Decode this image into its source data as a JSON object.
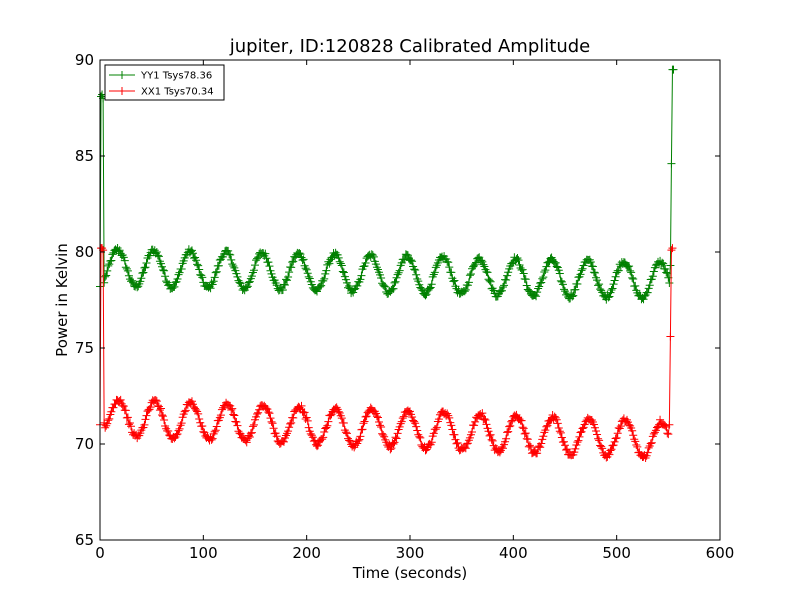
{
  "chart_data": {
    "type": "line",
    "title": "jupiter, ID:120828 Calibrated Amplitude",
    "xlabel": "Time (seconds)",
    "ylabel": "Power in Kelvin",
    "xlim": [
      0,
      600
    ],
    "ylim": [
      65,
      90
    ],
    "xticks": [
      0,
      100,
      200,
      300,
      400,
      500,
      600
    ],
    "yticks": [
      65,
      70,
      75,
      80,
      85,
      90
    ],
    "grid": false,
    "legend_position": "top-left",
    "marker": "+",
    "series": [
      {
        "name": "YY1 Tsys78.36",
        "color": "#008000",
        "spikes": {
          "start": [
            [
              0,
              78.2
            ],
            [
              1,
              88.1
            ],
            [
              2,
              88.2
            ],
            [
              3,
              88.0
            ],
            [
              4,
              78.4
            ]
          ],
          "end": [
            [
              552,
              79.3
            ],
            [
              553,
              84.6
            ],
            [
              554,
              89.5
            ],
            [
              555,
              89.5
            ]
          ]
        },
        "baseline": {
          "x_start": 4,
          "x_end": 551,
          "step": 1,
          "mean_start": 79.2,
          "mean_end": 78.5,
          "amplitude": 0.95,
          "period": 35,
          "phase_peak_x": 17
        }
      },
      {
        "name": "XX1 Tsys70.34",
        "color": "#ff0000",
        "spikes": {
          "start": [
            [
              0,
              71.0
            ],
            [
              1,
              80.2
            ],
            [
              2,
              80.2
            ],
            [
              3,
              80.1
            ],
            [
              4,
              71.1
            ]
          ],
          "end": [
            [
              551,
              71.0
            ],
            [
              552,
              75.6
            ],
            [
              553,
              80.1
            ],
            [
              554,
              80.2
            ]
          ]
        },
        "baseline": {
          "x_start": 4,
          "x_end": 550,
          "step": 1,
          "mean_start": 71.4,
          "mean_end": 70.2,
          "amplitude": 0.95,
          "period": 35,
          "phase_peak_x": 18
        }
      }
    ]
  }
}
